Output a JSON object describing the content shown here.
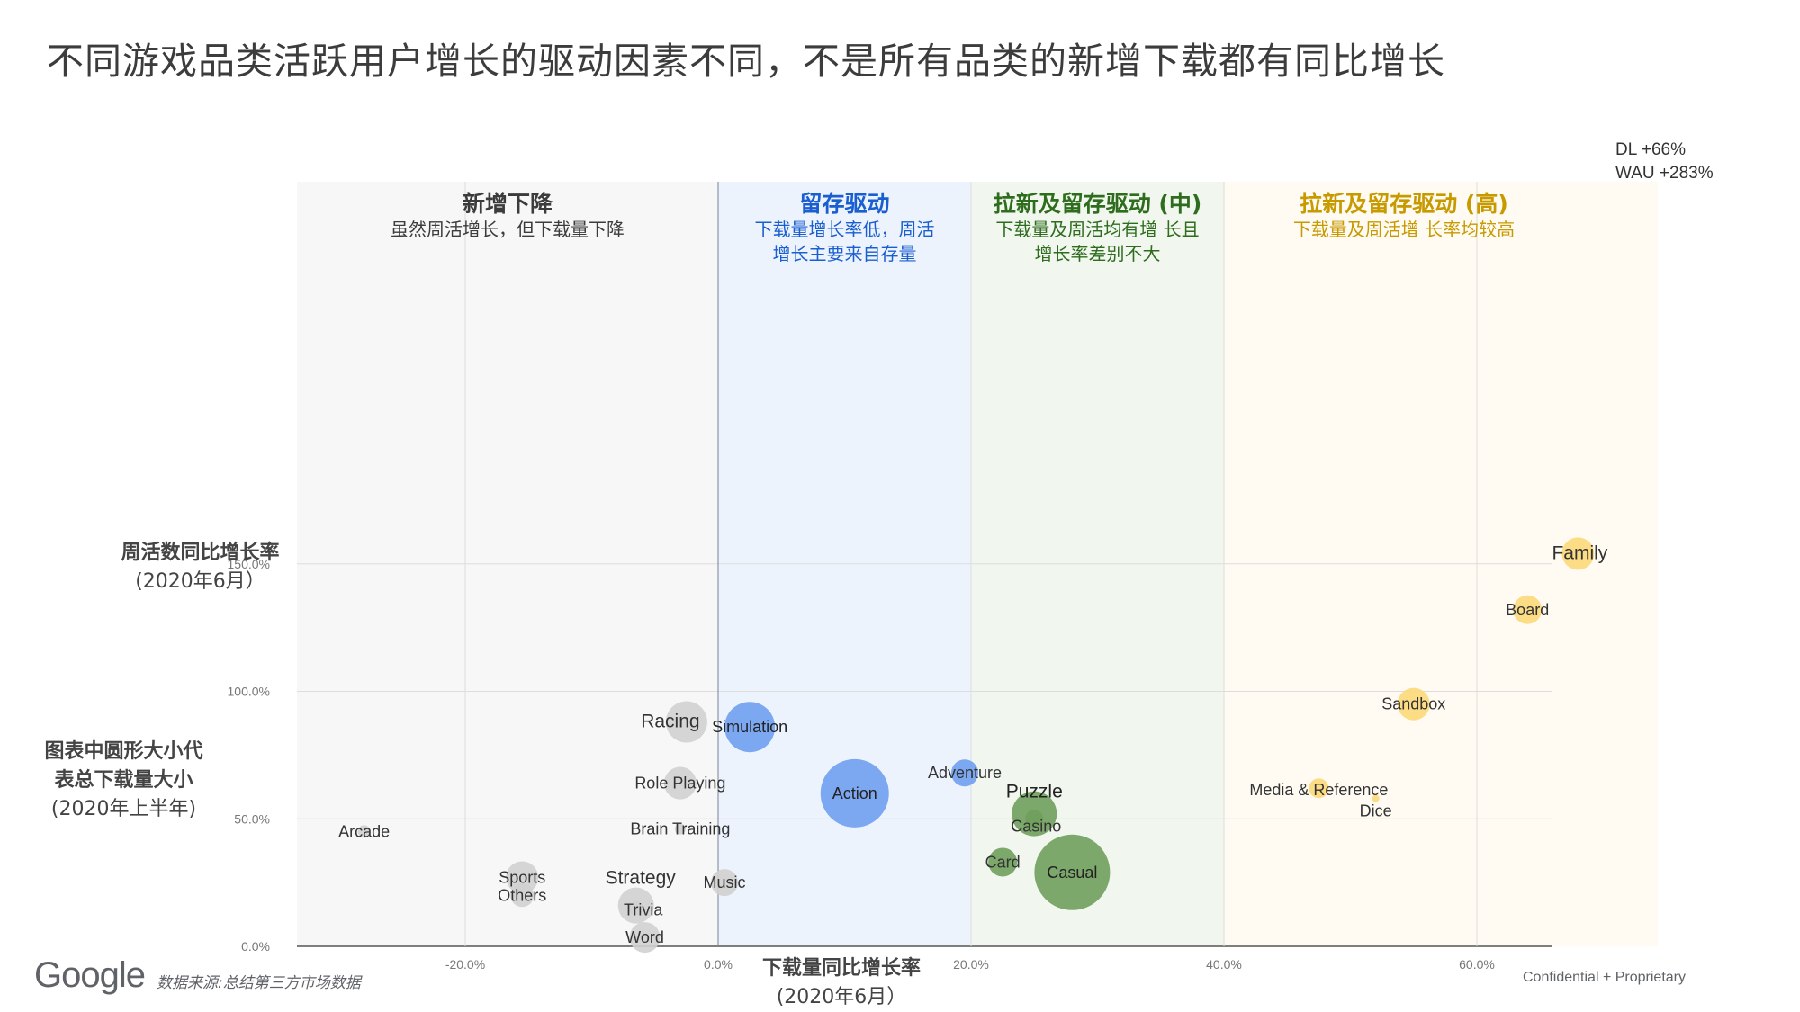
{
  "title": "不同游戏品类活跃用户增长的驱动因素不同，不是所有品类的新增下载都有同比增长",
  "y_axis_label": {
    "bold": "周活数同比增长率",
    "normal": "(2020年6月）"
  },
  "size_note": {
    "bold_line1": "图表中圆形大小代",
    "bold_line2": "表总下载量大小",
    "normal": "(2020年上半年)"
  },
  "x_axis_label": {
    "bold": "下载量同比增长率",
    "normal": "(2020年6月）"
  },
  "footer": {
    "logo": "Google",
    "source": "数据来源:总结第三方市场数据",
    "confidential": "Confidential + Proprietary"
  },
  "chart_data": {
    "type": "scatter",
    "x_ticks": [
      "-20.0%",
      "0.0%",
      "20.0%",
      "40.0%",
      "60.0%"
    ],
    "y_ticks": [
      "0.0%",
      "50.0%",
      "100.0%",
      "150.0%"
    ],
    "xlim": [
      -33,
      75
    ],
    "ylim": [
      0,
      150
    ],
    "zones": [
      {
        "from": -33,
        "to": 0,
        "heading": "新增下降",
        "sub": [
          "虽然周活增长，但下载量下降"
        ],
        "fill": "#f7f7f7",
        "color": "#3c3c3c"
      },
      {
        "from": 0,
        "to": 20,
        "heading": "留存驱动",
        "sub": [
          "下载量增长率低，周活",
          "增长主要来自存量"
        ],
        "fill": "#edf3fd",
        "color": "#1a5fd0"
      },
      {
        "from": 20,
        "to": 40,
        "heading": "拉新及留存驱动 (中)",
        "sub": [
          "下载量及周活均有增 长且",
          "增长率差别不大"
        ],
        "fill": "#f1f7ef",
        "color": "#2f6d1e"
      },
      {
        "from": 40,
        "to": 70,
        "heading": "拉新及留存驱动 (高)",
        "sub": [
          "下载量及周活增 长率均较高"
        ],
        "fill": "#fffbf3",
        "color": "#c79a00"
      }
    ],
    "colors": {
      "gray": "#d0d0d0",
      "blue": "#6f9ef0",
      "green": "#6f9e5c",
      "yellow": "#fcd97a"
    },
    "points": [
      {
        "name": "Family",
        "x": 68,
        "y": 154,
        "r": 18,
        "color": "yellow"
      },
      {
        "name": "Board",
        "x": 64,
        "y": 132,
        "r": 16,
        "color": "yellow"
      },
      {
        "name": "Sandbox",
        "x": 55,
        "y": 95,
        "r": 18,
        "color": "yellow"
      },
      {
        "name": "Media & Reference",
        "x": 47.5,
        "y": 62,
        "r": 11,
        "color": "yellow"
      },
      {
        "name": "Dice",
        "x": 52,
        "y": 58,
        "r": 4,
        "color": "yellow"
      },
      {
        "name": "Racing",
        "x": -2.5,
        "y": 88,
        "r": 23,
        "color": "gray"
      },
      {
        "name": "Simulation",
        "x": 2.5,
        "y": 86,
        "r": 28,
        "color": "blue"
      },
      {
        "name": "Adventure",
        "x": 19.5,
        "y": 68,
        "r": 15,
        "color": "blue"
      },
      {
        "name": "Role Playing",
        "x": -3,
        "y": 64,
        "r": 18,
        "color": "gray"
      },
      {
        "name": "Action",
        "x": 10.8,
        "y": 60,
        "r": 38,
        "color": "blue"
      },
      {
        "name": "Puzzle",
        "x": 25,
        "y": 52,
        "r": 25,
        "color": "green"
      },
      {
        "name": "Casino",
        "x": 25,
        "y": 50,
        "r": 10,
        "color": "green"
      },
      {
        "name": "Brain Training",
        "x": -3,
        "y": 46,
        "r": 6,
        "color": "gray"
      },
      {
        "name": "Arcade",
        "x": -28,
        "y": 45,
        "r": 7,
        "color": "gray"
      },
      {
        "name": "Card",
        "x": 22.5,
        "y": 33,
        "r": 16,
        "color": "green"
      },
      {
        "name": "Casual",
        "x": 28,
        "y": 29,
        "r": 42,
        "color": "green"
      },
      {
        "name": "Sports",
        "x": -15.5,
        "y": 27,
        "r": 18,
        "color": "gray"
      },
      {
        "name": "Music",
        "x": 0.5,
        "y": 25,
        "r": 15,
        "color": "gray"
      },
      {
        "name": "Others",
        "x": -15.5,
        "y": 20,
        "r": 13,
        "color": "gray"
      },
      {
        "name": "Strategy",
        "x": -6.5,
        "y": 16,
        "r": 20,
        "color": "gray"
      },
      {
        "name": "Trivia",
        "x": -6.5,
        "y": 15,
        "r": 8,
        "color": "gray"
      },
      {
        "name": "Word",
        "x": -5.8,
        "y": 3.5,
        "r": 17,
        "color": "gray"
      }
    ],
    "annotation": {
      "lines": [
        "DL +66%",
        "WAU +283%"
      ]
    }
  }
}
